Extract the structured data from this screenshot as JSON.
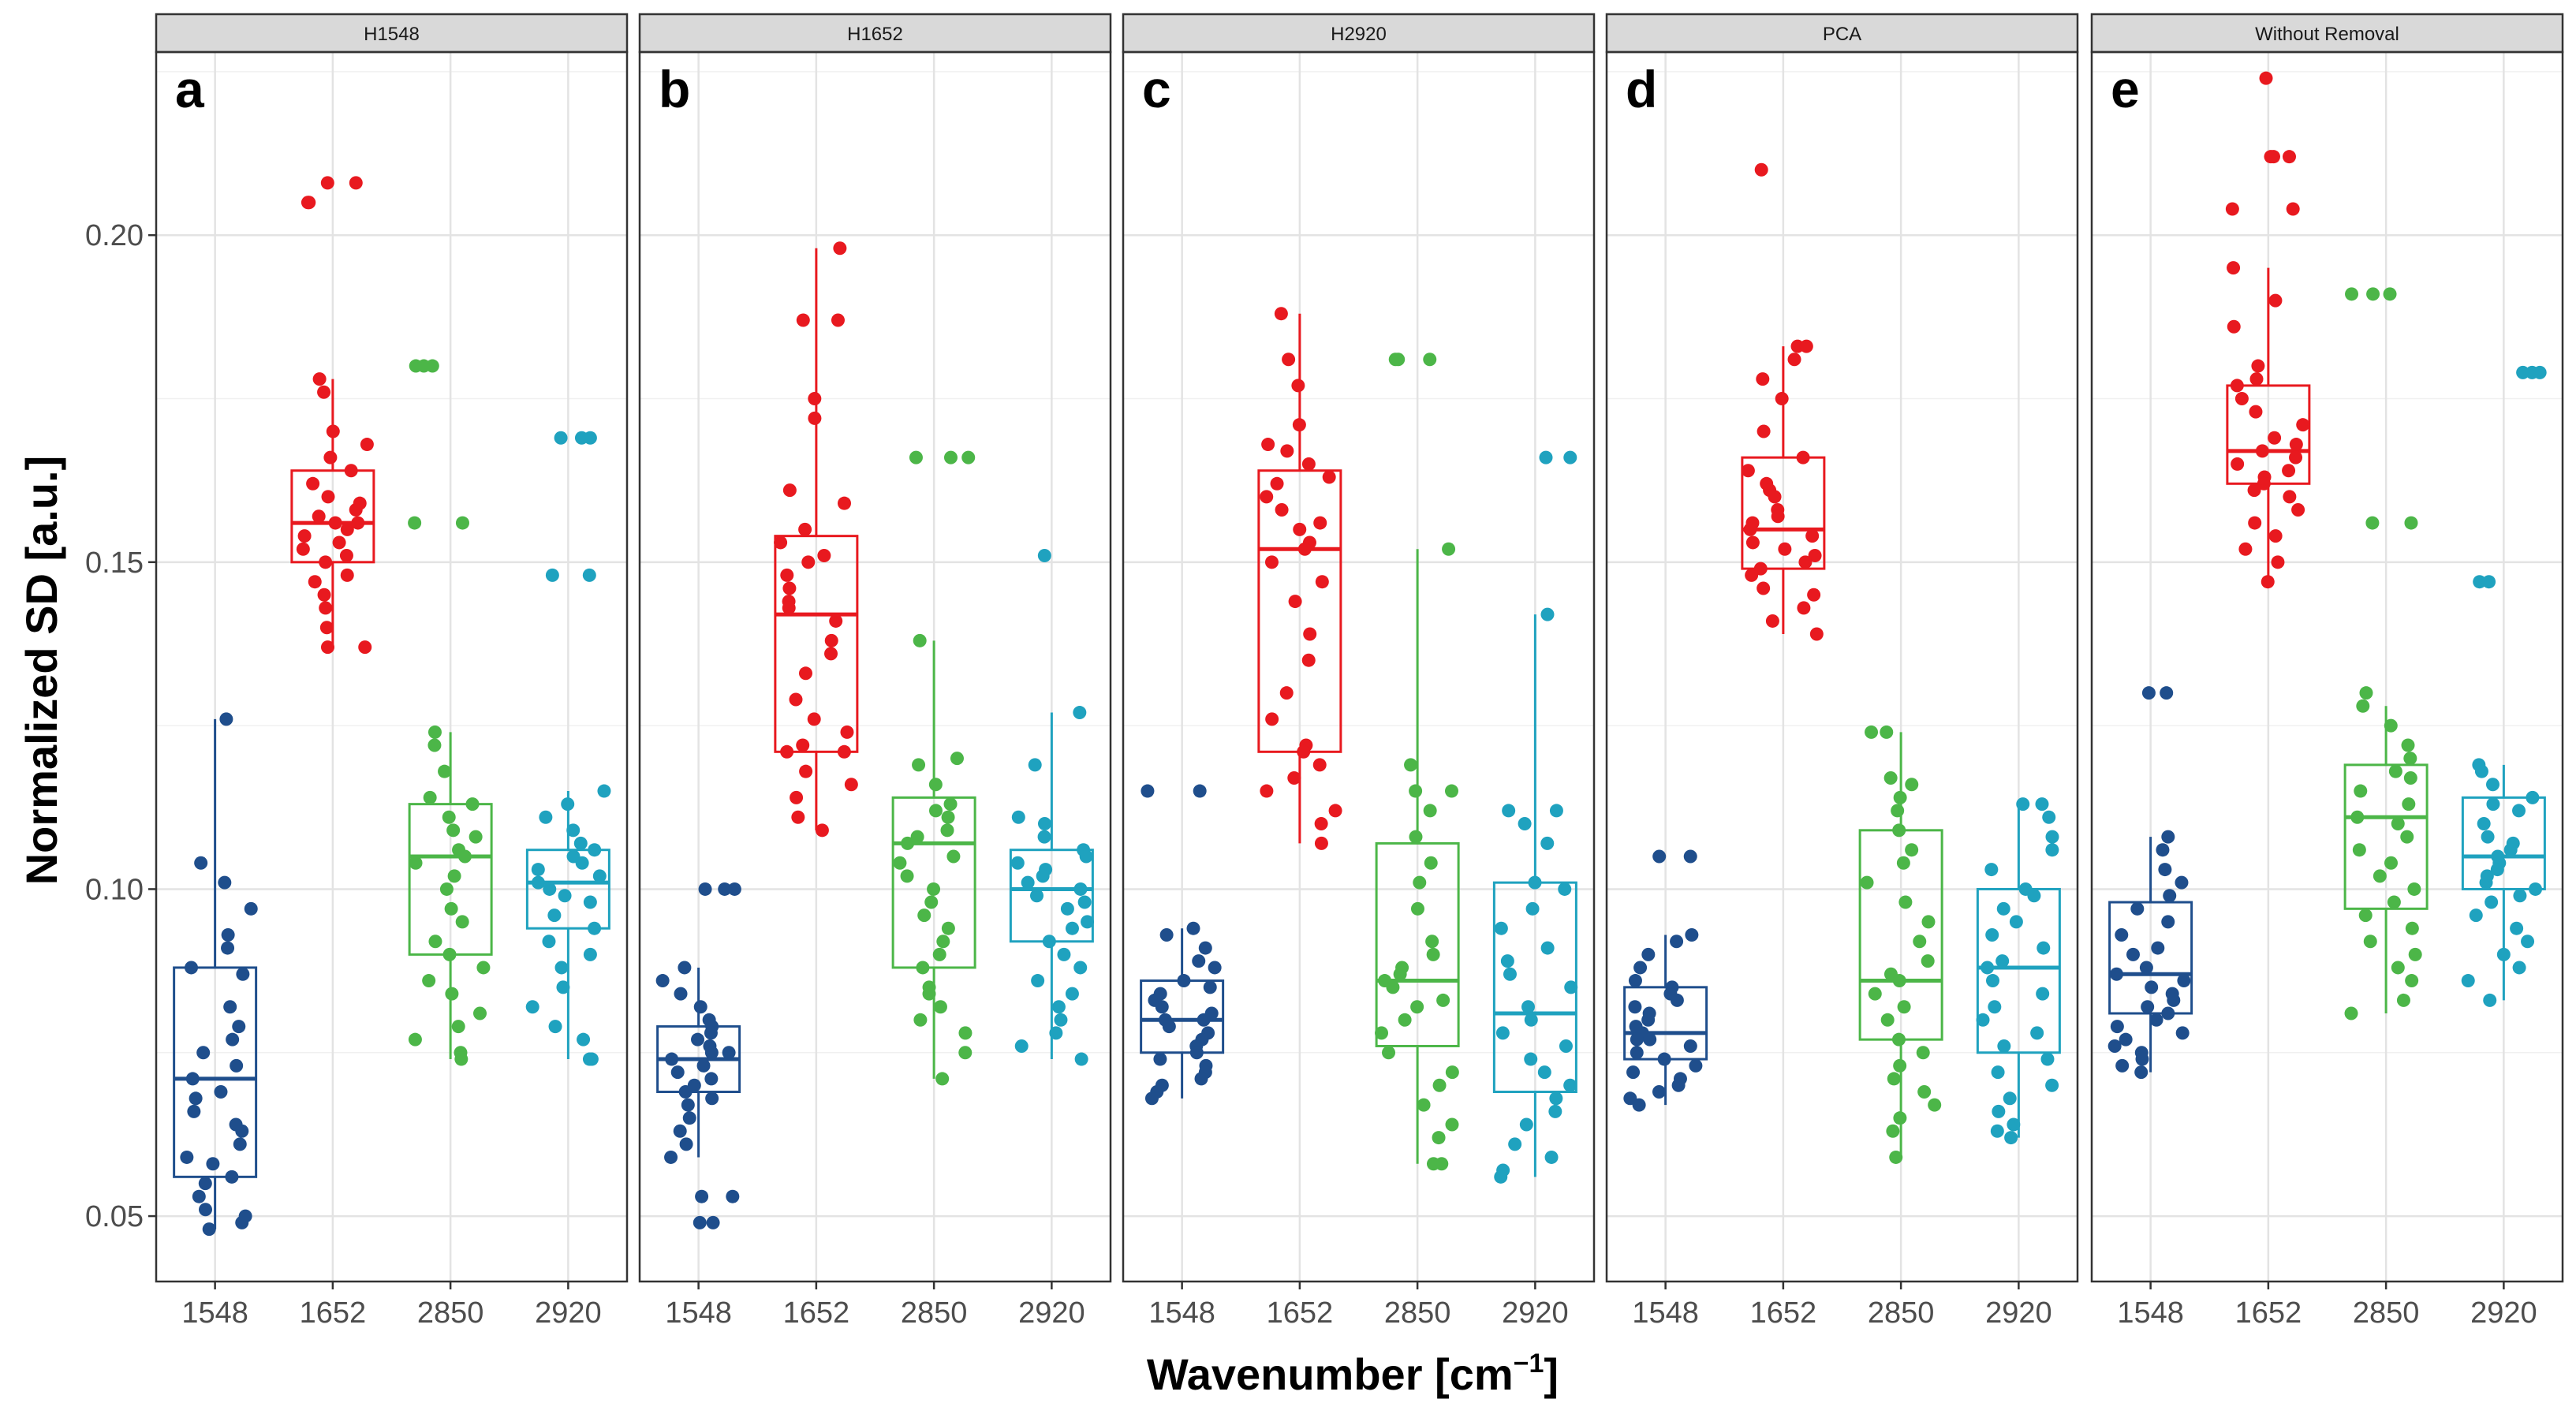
{
  "chart_data": {
    "type": "box-jitter",
    "ylabel": "Normalized SD [a.u.]",
    "xlabel": {
      "main": "Wavenumber [cm",
      "superscript": "−1",
      "close": "]"
    },
    "ylim": [
      0.04,
      0.228
    ],
    "yticks": [
      "0.05",
      "0.10",
      "0.15",
      "0.20"
    ],
    "categories": [
      "1548",
      "1652",
      "2850",
      "2920"
    ],
    "colors": {
      "1548": "#1f4e8c",
      "1652": "#e8191f",
      "2850": "#4cb648",
      "2920": "#1fa2bf"
    },
    "panels": [
      {
        "strip": "H1548",
        "letter": "a",
        "groups": [
          {
            "category": "1548",
            "min": 0.048,
            "q1": 0.056,
            "median": 0.071,
            "q3": 0.088,
            "max": 0.126,
            "points": [
              0.126,
              0.104,
              0.101,
              0.097,
              0.093,
              0.091,
              0.088,
              0.087,
              0.082,
              0.079,
              0.077,
              0.075,
              0.073,
              0.071,
              0.069,
              0.068,
              0.066,
              0.064,
              0.063,
              0.061,
              0.059,
              0.058,
              0.056,
              0.055,
              0.053,
              0.051,
              0.05,
              0.049,
              0.048
            ]
          },
          {
            "category": "1652",
            "min": 0.137,
            "q1": 0.15,
            "median": 0.156,
            "q3": 0.164,
            "max": 0.178,
            "points": [
              0.208,
              0.208,
              0.205,
              0.205,
              0.178,
              0.176,
              0.17,
              0.168,
              0.166,
              0.164,
              0.162,
              0.16,
              0.159,
              0.158,
              0.157,
              0.156,
              0.156,
              0.155,
              0.154,
              0.153,
              0.152,
              0.151,
              0.15,
              0.148,
              0.147,
              0.145,
              0.143,
              0.14,
              0.137,
              0.137
            ]
          },
          {
            "category": "2850",
            "min": 0.074,
            "q1": 0.09,
            "median": 0.105,
            "q3": 0.113,
            "max": 0.124,
            "points": [
              0.18,
              0.18,
              0.18,
              0.156,
              0.156,
              0.124,
              0.122,
              0.118,
              0.114,
              0.113,
              0.111,
              0.109,
              0.108,
              0.106,
              0.105,
              0.104,
              0.102,
              0.1,
              0.097,
              0.095,
              0.092,
              0.09,
              0.088,
              0.086,
              0.084,
              0.081,
              0.079,
              0.077,
              0.075,
              0.074
            ]
          },
          {
            "category": "2920",
            "min": 0.074,
            "q1": 0.094,
            "median": 0.101,
            "q3": 0.106,
            "max": 0.115,
            "points": [
              0.169,
              0.169,
              0.169,
              0.148,
              0.148,
              0.115,
              0.113,
              0.111,
              0.109,
              0.107,
              0.106,
              0.105,
              0.104,
              0.103,
              0.102,
              0.101,
              0.1,
              0.099,
              0.098,
              0.096,
              0.094,
              0.092,
              0.09,
              0.088,
              0.085,
              0.082,
              0.079,
              0.077,
              0.074,
              0.074
            ]
          }
        ]
      },
      {
        "strip": "H1652",
        "letter": "b",
        "groups": [
          {
            "category": "1548",
            "min": 0.059,
            "q1": 0.069,
            "median": 0.074,
            "q3": 0.079,
            "max": 0.088,
            "points": [
              0.1,
              0.1,
              0.1,
              0.088,
              0.086,
              0.084,
              0.082,
              0.08,
              0.079,
              0.078,
              0.077,
              0.076,
              0.075,
              0.075,
              0.074,
              0.073,
              0.072,
              0.071,
              0.07,
              0.069,
              0.068,
              0.067,
              0.065,
              0.063,
              0.061,
              0.059,
              0.053,
              0.053,
              0.049,
              0.049
            ]
          },
          {
            "category": "1652",
            "min": 0.109,
            "q1": 0.121,
            "median": 0.142,
            "q3": 0.154,
            "max": 0.198,
            "points": [
              0.198,
              0.187,
              0.187,
              0.175,
              0.172,
              0.161,
              0.159,
              0.155,
              0.153,
              0.151,
              0.15,
              0.148,
              0.146,
              0.144,
              0.143,
              0.141,
              0.138,
              0.136,
              0.133,
              0.129,
              0.126,
              0.124,
              0.122,
              0.121,
              0.121,
              0.118,
              0.116,
              0.114,
              0.111,
              0.109
            ]
          },
          {
            "category": "2850",
            "min": 0.071,
            "q1": 0.088,
            "median": 0.107,
            "q3": 0.114,
            "max": 0.138,
            "points": [
              0.166,
              0.166,
              0.166,
              0.138,
              0.12,
              0.119,
              0.116,
              0.113,
              0.112,
              0.111,
              0.109,
              0.108,
              0.107,
              0.105,
              0.104,
              0.102,
              0.1,
              0.098,
              0.096,
              0.094,
              0.092,
              0.09,
              0.088,
              0.085,
              0.084,
              0.082,
              0.08,
              0.078,
              0.075,
              0.071
            ]
          },
          {
            "category": "2920",
            "min": 0.074,
            "q1": 0.092,
            "median": 0.1,
            "q3": 0.106,
            "max": 0.127,
            "points": [
              0.151,
              0.127,
              0.119,
              0.111,
              0.11,
              0.108,
              0.106,
              0.105,
              0.104,
              0.103,
              0.102,
              0.101,
              0.1,
              0.099,
              0.098,
              0.097,
              0.095,
              0.094,
              0.092,
              0.09,
              0.088,
              0.086,
              0.084,
              0.082,
              0.08,
              0.078,
              0.076,
              0.074
            ]
          }
        ]
      },
      {
        "strip": "H2920",
        "letter": "c",
        "groups": [
          {
            "category": "1548",
            "min": 0.068,
            "q1": 0.075,
            "median": 0.08,
            "q3": 0.086,
            "max": 0.094,
            "points": [
              0.115,
              0.115,
              0.094,
              0.093,
              0.091,
              0.089,
              0.088,
              0.086,
              0.085,
              0.084,
              0.083,
              0.082,
              0.081,
              0.08,
              0.08,
              0.079,
              0.078,
              0.077,
              0.076,
              0.075,
              0.074,
              0.073,
              0.072,
              0.071,
              0.07,
              0.069,
              0.068
            ]
          },
          {
            "category": "1652",
            "min": 0.107,
            "q1": 0.121,
            "median": 0.152,
            "q3": 0.164,
            "max": 0.188,
            "points": [
              0.188,
              0.181,
              0.177,
              0.171,
              0.168,
              0.167,
              0.165,
              0.163,
              0.162,
              0.16,
              0.158,
              0.156,
              0.155,
              0.153,
              0.152,
              0.15,
              0.147,
              0.144,
              0.139,
              0.135,
              0.13,
              0.126,
              0.122,
              0.121,
              0.119,
              0.117,
              0.115,
              0.112,
              0.11,
              0.107
            ]
          },
          {
            "category": "2850",
            "min": 0.058,
            "q1": 0.076,
            "median": 0.086,
            "q3": 0.107,
            "max": 0.152,
            "points": [
              0.181,
              0.181,
              0.181,
              0.152,
              0.119,
              0.115,
              0.115,
              0.112,
              0.108,
              0.104,
              0.101,
              0.097,
              0.092,
              0.09,
              0.088,
              0.087,
              0.086,
              0.085,
              0.083,
              0.082,
              0.08,
              0.078,
              0.075,
              0.072,
              0.07,
              0.067,
              0.064,
              0.062,
              0.058,
              0.058
            ]
          },
          {
            "category": "2920",
            "min": 0.056,
            "q1": 0.069,
            "median": 0.081,
            "q3": 0.101,
            "max": 0.142,
            "points": [
              0.166,
              0.166,
              0.142,
              0.112,
              0.112,
              0.11,
              0.107,
              0.101,
              0.1,
              0.097,
              0.094,
              0.091,
              0.089,
              0.087,
              0.085,
              0.082,
              0.08,
              0.078,
              0.076,
              0.074,
              0.072,
              0.07,
              0.068,
              0.066,
              0.064,
              0.061,
              0.059,
              0.057,
              0.056
            ]
          }
        ]
      },
      {
        "strip": "PCA",
        "letter": "d",
        "groups": [
          {
            "category": "1548",
            "min": 0.067,
            "q1": 0.074,
            "median": 0.078,
            "q3": 0.085,
            "max": 0.093,
            "points": [
              0.105,
              0.105,
              0.093,
              0.092,
              0.09,
              0.088,
              0.086,
              0.085,
              0.084,
              0.083,
              0.082,
              0.081,
              0.08,
              0.079,
              0.078,
              0.077,
              0.077,
              0.076,
              0.075,
              0.074,
              0.073,
              0.072,
              0.071,
              0.07,
              0.069,
              0.068,
              0.067
            ]
          },
          {
            "category": "1652",
            "min": 0.139,
            "q1": 0.149,
            "median": 0.155,
            "q3": 0.166,
            "max": 0.183,
            "points": [
              0.21,
              0.183,
              0.183,
              0.181,
              0.178,
              0.175,
              0.17,
              0.166,
              0.164,
              0.162,
              0.161,
              0.16,
              0.158,
              0.157,
              0.156,
              0.155,
              0.154,
              0.153,
              0.152,
              0.151,
              0.15,
              0.149,
              0.148,
              0.146,
              0.145,
              0.143,
              0.141,
              0.139
            ]
          },
          {
            "category": "2850",
            "min": 0.059,
            "q1": 0.077,
            "median": 0.086,
            "q3": 0.109,
            "max": 0.124,
            "points": [
              0.124,
              0.124,
              0.117,
              0.116,
              0.114,
              0.112,
              0.109,
              0.106,
              0.104,
              0.101,
              0.098,
              0.095,
              0.092,
              0.089,
              0.087,
              0.086,
              0.084,
              0.082,
              0.08,
              0.077,
              0.075,
              0.073,
              0.071,
              0.069,
              0.067,
              0.065,
              0.063,
              0.059
            ]
          },
          {
            "category": "2920",
            "min": 0.062,
            "q1": 0.075,
            "median": 0.088,
            "q3": 0.1,
            "max": 0.113,
            "points": [
              0.113,
              0.113,
              0.111,
              0.108,
              0.106,
              0.103,
              0.1,
              0.099,
              0.097,
              0.095,
              0.093,
              0.091,
              0.089,
              0.088,
              0.086,
              0.084,
              0.082,
              0.08,
              0.078,
              0.076,
              0.074,
              0.072,
              0.07,
              0.068,
              0.066,
              0.064,
              0.063,
              0.062
            ]
          }
        ]
      },
      {
        "strip": "Without Removal",
        "letter": "e",
        "groups": [
          {
            "category": "1548",
            "min": 0.072,
            "q1": 0.081,
            "median": 0.087,
            "q3": 0.098,
            "max": 0.108,
            "points": [
              0.13,
              0.13,
              0.108,
              0.106,
              0.103,
              0.101,
              0.099,
              0.097,
              0.095,
              0.093,
              0.091,
              0.09,
              0.088,
              0.087,
              0.086,
              0.085,
              0.084,
              0.083,
              0.082,
              0.081,
              0.08,
              0.079,
              0.078,
              0.077,
              0.076,
              0.075,
              0.074,
              0.073,
              0.072
            ]
          },
          {
            "category": "1652",
            "min": 0.147,
            "q1": 0.162,
            "median": 0.167,
            "q3": 0.177,
            "max": 0.195,
            "points": [
              0.224,
              0.212,
              0.212,
              0.212,
              0.204,
              0.204,
              0.195,
              0.19,
              0.186,
              0.18,
              0.178,
              0.177,
              0.175,
              0.173,
              0.171,
              0.169,
              0.168,
              0.167,
              0.166,
              0.165,
              0.164,
              0.163,
              0.162,
              0.161,
              0.16,
              0.158,
              0.156,
              0.154,
              0.152,
              0.15,
              0.147
            ]
          },
          {
            "category": "2850",
            "min": 0.081,
            "q1": 0.097,
            "median": 0.111,
            "q3": 0.119,
            "max": 0.128,
            "points": [
              0.191,
              0.191,
              0.191,
              0.156,
              0.156,
              0.13,
              0.128,
              0.125,
              0.122,
              0.12,
              0.118,
              0.117,
              0.115,
              0.113,
              0.111,
              0.11,
              0.108,
              0.106,
              0.104,
              0.102,
              0.1,
              0.098,
              0.096,
              0.094,
              0.092,
              0.09,
              0.088,
              0.086,
              0.083,
              0.081
            ]
          },
          {
            "category": "2920",
            "min": 0.083,
            "q1": 0.1,
            "median": 0.105,
            "q3": 0.114,
            "max": 0.119,
            "points": [
              0.179,
              0.179,
              0.179,
              0.147,
              0.147,
              0.119,
              0.118,
              0.116,
              0.114,
              0.113,
              0.112,
              0.11,
              0.108,
              0.107,
              0.106,
              0.105,
              0.104,
              0.103,
              0.102,
              0.101,
              0.1,
              0.099,
              0.098,
              0.096,
              0.094,
              0.092,
              0.09,
              0.088,
              0.086,
              0.083
            ]
          }
        ]
      }
    ]
  }
}
